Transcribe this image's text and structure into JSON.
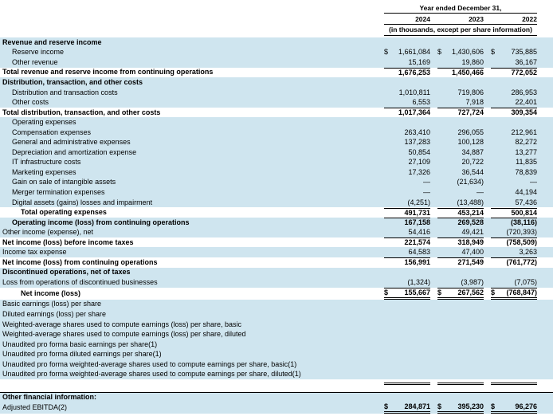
{
  "header": {
    "period_label": "Year ended December 31,",
    "years": [
      "2024",
      "2023",
      "2022"
    ],
    "units_note": "(in thousands, except per share information)"
  },
  "colors": {
    "row_shade": "#cfe5ef",
    "rule": "#000000",
    "text": "#000000"
  },
  "table": {
    "rows": [
      {
        "label": "Revenue and reserve income",
        "style": [
          "shaded",
          "bold"
        ],
        "values": [
          "",
          "",
          ""
        ]
      },
      {
        "label": "Reserve income",
        "indent": 1,
        "dollar": true,
        "style": [
          "shaded"
        ],
        "values": [
          "1,661,084",
          "1,430,606",
          "735,885"
        ]
      },
      {
        "label": "Other revenue",
        "indent": 1,
        "style": [
          "shaded"
        ],
        "values": [
          "15,169",
          "19,860",
          "36,167"
        ]
      },
      {
        "label": "Total revenue and reserve income from continuing operations",
        "style": [
          "bold",
          "ruleTop"
        ],
        "values": [
          "1,676,253",
          "1,450,466",
          "772,052"
        ]
      },
      {
        "label": "Distribution, transaction, and other costs",
        "style": [
          "shaded",
          "bold"
        ],
        "values": [
          "",
          "",
          ""
        ]
      },
      {
        "label": "Distribution and transaction costs",
        "indent": 1,
        "style": [
          "shaded"
        ],
        "values": [
          "1,010,811",
          "719,806",
          "286,953"
        ]
      },
      {
        "label": "Other costs",
        "indent": 1,
        "style": [
          "shaded"
        ],
        "values": [
          "6,553",
          "7,918",
          "22,401"
        ]
      },
      {
        "label": "Total distribution, transaction, and other costs",
        "style": [
          "bold",
          "ruleTop"
        ],
        "values": [
          "1,017,364",
          "727,724",
          "309,354"
        ]
      },
      {
        "label": "Operating expenses",
        "indent": 1,
        "style": [
          "shaded"
        ],
        "values": [
          "",
          "",
          ""
        ]
      },
      {
        "label": "Compensation expenses",
        "indent": 1,
        "style": [
          "shaded"
        ],
        "values": [
          "263,410",
          "296,055",
          "212,961"
        ]
      },
      {
        "label": "General and administrative expenses",
        "indent": 1,
        "style": [
          "shaded"
        ],
        "values": [
          "137,283",
          "100,128",
          "82,272"
        ]
      },
      {
        "label": "Depreciation and amortization expense",
        "indent": 1,
        "style": [
          "shaded"
        ],
        "values": [
          "50,854",
          "34,887",
          "13,277"
        ]
      },
      {
        "label": "IT infrastructure costs",
        "indent": 1,
        "style": [
          "shaded"
        ],
        "values": [
          "27,109",
          "20,722",
          "11,835"
        ]
      },
      {
        "label": "Marketing expenses",
        "indent": 1,
        "style": [
          "shaded"
        ],
        "values": [
          "17,326",
          "36,544",
          "78,839"
        ]
      },
      {
        "label": "Gain on sale of intangible assets",
        "indent": 1,
        "style": [
          "shaded"
        ],
        "values": [
          "—",
          "(21,634)",
          "—"
        ]
      },
      {
        "label": "Merger termination expenses",
        "indent": 1,
        "style": [
          "shaded"
        ],
        "values": [
          "—",
          "—",
          "44,194"
        ]
      },
      {
        "label": "Digital assets (gains) losses and impairment",
        "indent": 1,
        "style": [
          "shaded"
        ],
        "values": [
          "(4,251)",
          "(13,488)",
          "57,436"
        ]
      },
      {
        "label": "Total operating expenses",
        "indent": 2,
        "style": [
          "bold",
          "ruleTop"
        ],
        "values": [
          "491,731",
          "453,214",
          "500,814"
        ]
      },
      {
        "label": "Operating income (loss) from continuing operations",
        "indent": 1,
        "style": [
          "shaded",
          "bold",
          "ruleTop"
        ],
        "values": [
          "167,158",
          "269,528",
          "(38,116)"
        ]
      },
      {
        "label": "Other income (expense), net",
        "style": [
          "shaded"
        ],
        "values": [
          "54,416",
          "49,421",
          "(720,393)"
        ]
      },
      {
        "label": "Net income (loss) before income taxes",
        "style": [
          "bold",
          "ruleTop"
        ],
        "values": [
          "221,574",
          "318,949",
          "(758,509)"
        ]
      },
      {
        "label": "Income tax expense",
        "style": [
          "shaded"
        ],
        "values": [
          "64,583",
          "47,400",
          "3,263"
        ]
      },
      {
        "label": "Net income (loss) from continuing operations",
        "style": [
          "bold",
          "ruleTop"
        ],
        "values": [
          "156,991",
          "271,549",
          "(761,772)"
        ]
      },
      {
        "label": "Discontinued operations, net of taxes",
        "style": [
          "shaded",
          "bold"
        ],
        "values": [
          "",
          "",
          ""
        ]
      },
      {
        "label": "Loss from operations of discontinued businesses",
        "style": [
          "shaded"
        ],
        "values": [
          "(1,324)",
          "(3,987)",
          "(7,075)"
        ]
      },
      {
        "label": "Net income (loss)",
        "indent": 2,
        "dollar": true,
        "style": [
          "bold",
          "ruleTop",
          "ruleDbl"
        ],
        "values": [
          "155,667",
          "267,562",
          "(768,847)"
        ]
      },
      {
        "label": "Basic earnings (loss) per share",
        "style": [
          "shaded"
        ],
        "values": [
          "",
          "",
          ""
        ]
      },
      {
        "label": "Diluted earnings (loss) per share",
        "style": [
          "shaded"
        ],
        "values": [
          "",
          "",
          ""
        ]
      },
      {
        "label": "Weighted-average shares used to compute earnings (loss) per share, basic",
        "style": [
          "shaded"
        ],
        "values": [
          "",
          "",
          ""
        ]
      },
      {
        "label": "Weighted-average shares used to compute earnings (loss) per share, diluted",
        "style": [
          "shaded"
        ],
        "values": [
          "",
          "",
          ""
        ]
      },
      {
        "label": "Unaudited pro forma basic earnings per share(1)",
        "style": [
          "shaded"
        ],
        "values": [
          "",
          "",
          ""
        ]
      },
      {
        "label": "Unaudited pro forma diluted earnings per share(1)",
        "style": [
          "shaded"
        ],
        "values": [
          "",
          "",
          ""
        ]
      },
      {
        "label": "Unaudited pro forma weighted-average shares used to compute earnings per share, basic(1)",
        "style": [
          "shaded"
        ],
        "values": [
          "",
          "",
          ""
        ]
      },
      {
        "label": "Unaudited pro forma weighted-average shares used to compute earnings per share, diluted(1)",
        "style": [
          "shaded"
        ],
        "values": [
          "",
          "",
          ""
        ]
      },
      {
        "label": "",
        "style": [
          "spacer",
          "ruleDbl"
        ],
        "values": [
          "",
          "",
          ""
        ]
      },
      {
        "label": "Other financial information:",
        "style": [
          "shaded",
          "bold",
          "fullTop"
        ],
        "values": [
          "",
          "",
          ""
        ]
      },
      {
        "label": "Adjusted EBITDA(2)",
        "dollar": true,
        "style": [
          "shaded",
          "boldv",
          "ruleDbl"
        ],
        "values": [
          "284,871",
          "395,230",
          "96,276"
        ]
      }
    ]
  }
}
